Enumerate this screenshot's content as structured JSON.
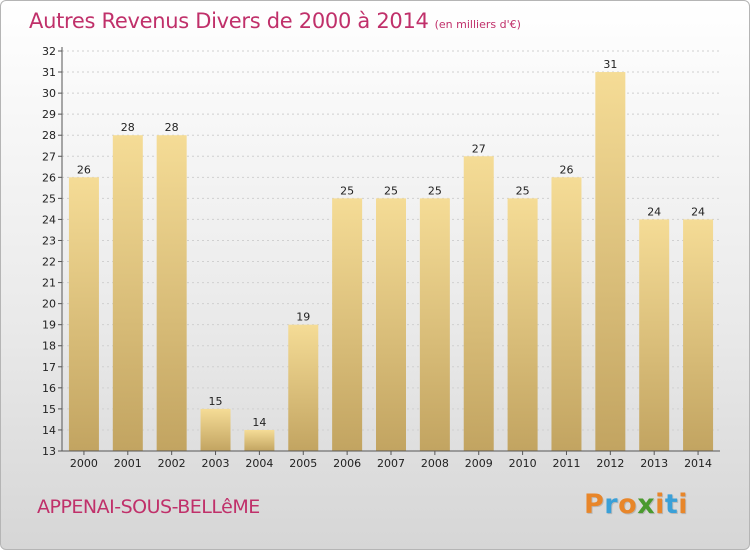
{
  "title": "Autres Revenus Divers de 2000 à 2014",
  "unit": "(en milliers d'€)",
  "commune": "APPENAI-SOUS-BELLêME",
  "logo": {
    "letters": [
      "P",
      "r",
      "o",
      "x",
      "i",
      "t",
      "i"
    ],
    "colors": [
      "#e8862a",
      "#3aa0d8",
      "#e8862a",
      "#4a9a2e",
      "#e8862a",
      "#3aa0d8",
      "#e8862a"
    ]
  },
  "colors": {
    "bar_top": "#f5dc96",
    "bar_bottom": "#c2a461",
    "axis": "#555555",
    "grid": "#d0d0d0",
    "title": "#c0306a"
  },
  "chart_data": {
    "type": "bar",
    "categories": [
      "2000",
      "2001",
      "2002",
      "2003",
      "2004",
      "2005",
      "2006",
      "2007",
      "2008",
      "2009",
      "2010",
      "2011",
      "2012",
      "2013",
      "2014"
    ],
    "values": [
      26,
      28,
      28,
      15,
      14,
      19,
      25,
      25,
      25,
      27,
      25,
      26,
      31,
      24,
      24
    ],
    "ylim": [
      13,
      32
    ],
    "yticks": [
      13,
      14,
      15,
      16,
      17,
      18,
      19,
      20,
      21,
      22,
      23,
      24,
      25,
      26,
      27,
      28,
      29,
      30,
      31,
      32
    ],
    "xlabel": "",
    "ylabel": "",
    "grid": "horizontal",
    "data_labels": true
  }
}
